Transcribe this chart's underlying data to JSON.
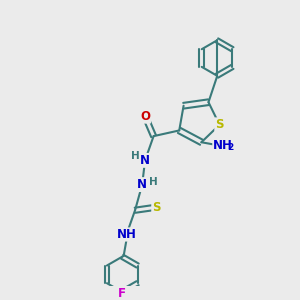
{
  "bg_color": "#ebebeb",
  "bond_color": "#3a7a7a",
  "bond_width": 1.5,
  "atom_colors": {
    "S": "#b8b800",
    "N": "#0000cc",
    "O": "#cc0000",
    "F": "#cc00cc",
    "H": "#3a7a7a",
    "C": "#3a7a7a"
  },
  "font_size": 8.5
}
